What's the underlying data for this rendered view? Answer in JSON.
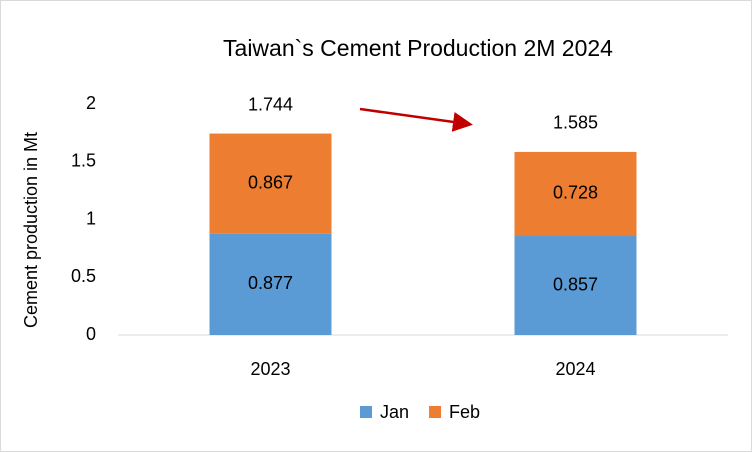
{
  "chart_data": {
    "type": "stacked_bar",
    "title": "Taiwan`s Cement Production 2M 2024",
    "y_axis_label": "Cement production in Mt",
    "categories": [
      "2023",
      "2024"
    ],
    "series": [
      {
        "name": "Jan",
        "color": "#5b9bd5",
        "values": [
          0.877,
          0.857
        ]
      },
      {
        "name": "Feb",
        "color": "#ed7d31",
        "values": [
          0.867,
          0.728
        ]
      }
    ],
    "totals": [
      1.744,
      1.585
    ],
    "ylim": [
      0,
      2
    ],
    "yticks": [
      0,
      0.5,
      1,
      1.5,
      2
    ],
    "grid": false,
    "legend": "bottom"
  }
}
